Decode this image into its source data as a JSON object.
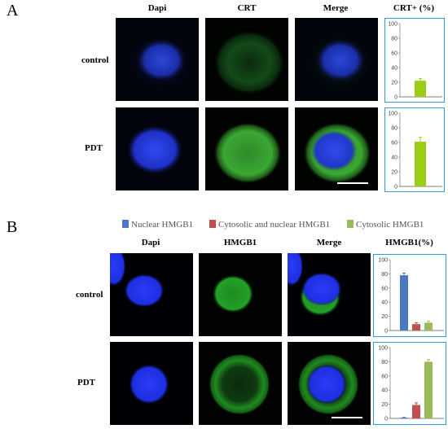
{
  "panelA": {
    "letter": "A",
    "columns": [
      "Dapi",
      "CRT",
      "Merge",
      "CRT+ (%)"
    ],
    "rows": [
      "control",
      "PDT"
    ]
  },
  "panelB": {
    "letter": "B",
    "legend": [
      {
        "label": "Nuclear HMGB1",
        "color": "#4a78c2"
      },
      {
        "label": "Cytosolic and nuclear HMGB1",
        "color": "#c0504d"
      },
      {
        "label": "Cytosolic HMGB1",
        "color": "#9bbb59"
      }
    ],
    "columns": [
      "Dapi",
      "HMGB1",
      "Merge",
      "HMGB1(%)"
    ],
    "rows": [
      "control",
      "PDT"
    ]
  },
  "chart_data": [
    {
      "type": "bar",
      "panel": "A",
      "row": "control",
      "ylim": [
        0,
        100
      ],
      "yticks": [
        "0",
        "20",
        "40",
        "60",
        "80",
        "100"
      ],
      "series": [
        {
          "values": [
            22
          ],
          "errors": [
            3
          ],
          "color": "#9acd14"
        }
      ]
    },
    {
      "type": "bar",
      "panel": "A",
      "row": "PDT",
      "ylim": [
        0,
        100
      ],
      "yticks": [
        "0",
        "20",
        "40",
        "60",
        "80",
        "100"
      ],
      "series": [
        {
          "values": [
            61
          ],
          "errors": [
            6
          ],
          "color": "#9acd14"
        }
      ]
    },
    {
      "type": "bar",
      "panel": "B",
      "row": "control",
      "ylim": [
        0,
        100
      ],
      "yticks": [
        "0",
        "20",
        "40",
        "60",
        "80",
        "100"
      ],
      "series": [
        {
          "values": [
            78,
            9,
            11
          ],
          "errors": [
            3,
            2,
            2
          ],
          "colors": [
            "#4a78c2",
            "#c0504d",
            "#9bbb59"
          ]
        }
      ]
    },
    {
      "type": "bar",
      "panel": "B",
      "row": "PDT",
      "ylim": [
        0,
        100
      ],
      "yticks": [
        "0",
        "20",
        "40",
        "60",
        "80",
        "100"
      ],
      "series": [
        {
          "values": [
            1,
            19,
            80
          ],
          "errors": [
            0.5,
            3,
            3
          ],
          "colors": [
            "#4a78c2",
            "#c0504d",
            "#9bbb59"
          ]
        }
      ]
    }
  ]
}
